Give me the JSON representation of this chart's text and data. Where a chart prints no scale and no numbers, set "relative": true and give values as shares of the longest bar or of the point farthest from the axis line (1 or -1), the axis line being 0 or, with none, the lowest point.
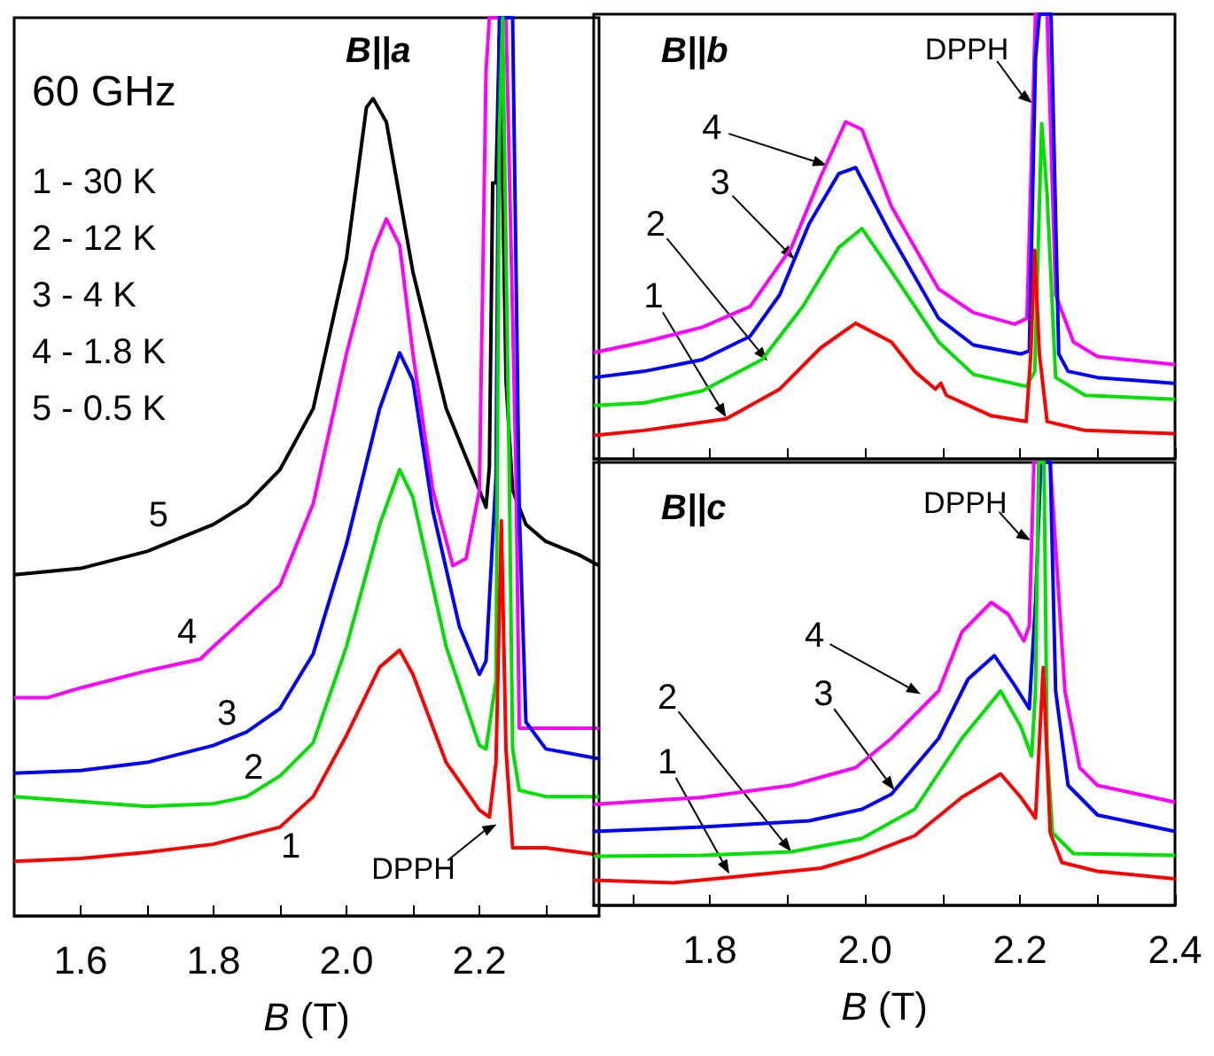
{
  "chart_data": [
    {
      "type": "line",
      "relative": true,
      "title": "B||a",
      "xlabel": "B (T)",
      "tick_labels": "x",
      "xlim": [
        1.5,
        2.38
      ],
      "xticks": [
        {
          "value": 1.6,
          "label": "1.6"
        },
        {
          "value": 1.7,
          "label": null
        },
        {
          "value": 1.8,
          "label": "1.8"
        },
        {
          "value": 1.9,
          "label": null
        },
        {
          "value": 2.0,
          "label": "2.0"
        },
        {
          "value": 2.1,
          "label": null
        },
        {
          "value": 2.2,
          "label": "2.2"
        },
        {
          "value": 2.3,
          "label": null
        }
      ],
      "annotations": [
        "60 GHz",
        "1 - 30 K",
        "2 - 12 K",
        "3 - 4 K",
        "4 - 1.8 K",
        "5 - 0.5 K",
        {
          "text": "5",
          "x": 1.717,
          "y": 0.41
        },
        {
          "text": "4",
          "x": 1.76,
          "y": 0.28
        },
        {
          "text": "3",
          "x": 1.82,
          "y": 0.195
        },
        {
          "text": "2",
          "x": 1.86,
          "y": 0.135
        },
        {
          "text": "1",
          "x": 1.916,
          "y": 0.105
        },
        {
          "text": "DPPH",
          "x": 2.226,
          "y": 0.102
        }
      ],
      "series": [
        {
          "color": "#000000",
          "x": [
            1.5,
            1.6,
            1.7,
            1.8,
            1.85,
            1.9,
            1.95,
            2.0,
            2.03,
            2.04,
            2.06,
            2.1,
            2.15,
            2.2,
            2.21,
            2.215,
            2.22,
            2.225,
            2.23,
            2.235,
            2.24,
            2.25,
            2.27,
            2.3,
            2.35,
            2.38
          ],
          "values": [
            0.38,
            0.387,
            0.406,
            0.436,
            0.459,
            0.497,
            0.565,
            0.732,
            0.9,
            0.91,
            0.884,
            0.717,
            0.565,
            0.474,
            0.455,
            0.5,
            0.816,
            0.816,
            0.98,
            0.816,
            0.596,
            0.474,
            0.436,
            0.417,
            0.402,
            0.39
          ]
        },
        {
          "color": "#ff00ff",
          "x": [
            1.5,
            1.55,
            1.6,
            1.7,
            1.78,
            1.8,
            1.85,
            1.9,
            1.95,
            2.0,
            2.04,
            2.06,
            2.08,
            2.1,
            2.13,
            2.16,
            2.18,
            2.2,
            2.21,
            2.215,
            2.24,
            2.255,
            2.26,
            2.3,
            2.38
          ],
          "values": [
            0.243,
            0.243,
            0.254,
            0.273,
            0.286,
            0.3,
            0.334,
            0.368,
            0.459,
            0.626,
            0.74,
            0.776,
            0.747,
            0.626,
            0.474,
            0.39,
            0.398,
            0.474,
            0.94,
            1,
            1,
            0.5,
            0.209,
            0.209,
            0.209
          ]
        },
        {
          "color": "#0000ff",
          "x": [
            1.5,
            1.6,
            1.7,
            1.8,
            1.85,
            1.9,
            1.95,
            2.0,
            2.05,
            2.08,
            2.1,
            2.13,
            2.17,
            2.2,
            2.21,
            2.225,
            2.23,
            2.25,
            2.26,
            2.27,
            2.3,
            2.38
          ],
          "values": [
            0.159,
            0.162,
            0.171,
            0.19,
            0.205,
            0.231,
            0.292,
            0.414,
            0.565,
            0.627,
            0.596,
            0.451,
            0.322,
            0.269,
            0.284,
            0.489,
            1,
            1,
            0.451,
            0.216,
            0.186,
            0.175
          ]
        },
        {
          "color": "#00e000",
          "x": [
            1.5,
            1.7,
            1.8,
            1.85,
            1.9,
            1.95,
            2.0,
            2.05,
            2.08,
            2.1,
            2.15,
            2.2,
            2.21,
            2.225,
            2.23,
            2.235,
            2.245,
            2.25,
            2.26,
            2.3,
            2.38
          ],
          "values": [
            0.133,
            0.122,
            0.125,
            0.133,
            0.156,
            0.193,
            0.3,
            0.436,
            0.497,
            0.466,
            0.3,
            0.19,
            0.186,
            0.262,
            0.869,
            1,
            0.489,
            0.186,
            0.14,
            0.133,
            0.133
          ]
        },
        {
          "color": "#ff0000",
          "x": [
            1.5,
            1.6,
            1.7,
            1.8,
            1.9,
            1.95,
            2.0,
            2.05,
            2.08,
            2.1,
            2.15,
            2.2,
            2.215,
            2.225,
            2.233,
            2.24,
            2.25,
            2.3,
            2.38
          ],
          "values": [
            0.061,
            0.064,
            0.071,
            0.08,
            0.099,
            0.133,
            0.201,
            0.277,
            0.296,
            0.269,
            0.171,
            0.118,
            0.11,
            0.171,
            0.44,
            0.186,
            0.076,
            0.076,
            0.068
          ]
        }
      ]
    },
    {
      "type": "line",
      "relative": true,
      "title": "B||b",
      "tick_labels": false,
      "xlim": [
        1.65,
        2.4
      ],
      "xticks": [
        {
          "value": 1.7,
          "label": null
        },
        {
          "value": 1.8,
          "label": null
        },
        {
          "value": 1.9,
          "label": null
        },
        {
          "value": 2.0,
          "label": null
        },
        {
          "value": 2.1,
          "label": null
        },
        {
          "value": 2.2,
          "label": null
        },
        {
          "value": 2.3,
          "label": null
        },
        {
          "value": 2.4,
          "label": null
        }
      ],
      "annotations": [
        {
          "text": "4",
          "x": 1.951,
          "y": 0.66
        },
        {
          "text": "3",
          "x": 1.909,
          "y": 0.449
        },
        {
          "text": "2",
          "x": 1.874,
          "y": 0.22
        },
        {
          "text": "1",
          "x": 1.821,
          "y": 0.093
        },
        {
          "text": "DPPH",
          "x": 2.216,
          "y": 0.8
        }
      ],
      "series": [
        {
          "color": "#ff00ff",
          "x": [
            1.65,
            1.715,
            1.79,
            1.852,
            1.905,
            1.943,
            1.975,
            1.996,
            2.034,
            2.095,
            2.14,
            2.193,
            2.209,
            2.22,
            2.235,
            2.246,
            2.269,
            2.3,
            2.4
          ],
          "values": [
            0.239,
            0.263,
            0.296,
            0.343,
            0.475,
            0.635,
            0.758,
            0.741,
            0.568,
            0.382,
            0.329,
            0.303,
            0.316,
            1,
            1,
            0.369,
            0.263,
            0.23,
            0.212
          ]
        },
        {
          "color": "#0000ff",
          "x": [
            1.65,
            1.715,
            1.79,
            1.852,
            1.89,
            1.928,
            1.966,
            1.988,
            2.034,
            2.095,
            2.14,
            2.201,
            2.212,
            2.22,
            2.225,
            2.24,
            2.25,
            2.262,
            2.3,
            2.4
          ],
          "values": [
            0.183,
            0.197,
            0.223,
            0.276,
            0.369,
            0.529,
            0.641,
            0.655,
            0.502,
            0.316,
            0.256,
            0.236,
            0.243,
            0.9,
            1,
            1,
            0.236,
            0.197,
            0.183,
            0.17
          ]
        },
        {
          "color": "#00e000",
          "x": [
            1.65,
            1.715,
            1.79,
            1.867,
            1.92,
            1.966,
            1.996,
            2.034,
            2.095,
            2.14,
            2.208,
            2.219,
            2.228,
            2.235,
            2.246,
            2.284,
            2.4
          ],
          "values": [
            0.12,
            0.126,
            0.153,
            0.223,
            0.343,
            0.475,
            0.518,
            0.422,
            0.263,
            0.19,
            0.163,
            0.196,
            0.754,
            0.594,
            0.183,
            0.143,
            0.134
          ]
        },
        {
          "color": "#ff0000",
          "x": [
            1.65,
            1.715,
            1.821,
            1.89,
            1.943,
            1.988,
            2.034,
            2.064,
            2.091,
            2.098,
            2.105,
            2.163,
            2.208,
            2.214,
            2.219,
            2.225,
            2.235,
            2.284,
            2.4
          ],
          "values": [
            0.053,
            0.064,
            0.09,
            0.157,
            0.25,
            0.305,
            0.263,
            0.197,
            0.157,
            0.17,
            0.143,
            0.097,
            0.084,
            0.237,
            0.469,
            0.237,
            0.084,
            0.064,
            0.057
          ]
        }
      ]
    },
    {
      "type": "line",
      "relative": true,
      "title": "B||c",
      "xlabel": "B (T)",
      "tick_labels": "x",
      "xlim": [
        1.65,
        2.4
      ],
      "xticks": [
        {
          "value": 1.7,
          "label": null
        },
        {
          "value": 1.8,
          "label": "1.8"
        },
        {
          "value": 1.9,
          "label": null
        },
        {
          "value": 2.0,
          "label": "2.0"
        },
        {
          "value": 2.1,
          "label": null
        },
        {
          "value": 2.2,
          "label": "2.2"
        },
        {
          "value": 2.3,
          "label": null
        },
        {
          "value": 2.4,
          "label": "2.4"
        }
      ],
      "annotations": [
        {
          "text": "4",
          "x": 2.072,
          "y": 0.477
        },
        {
          "text": "3",
          "x": 2.038,
          "y": 0.26
        },
        {
          "text": "2",
          "x": 1.905,
          "y": 0.121
        },
        {
          "text": "1",
          "x": 1.825,
          "y": 0.071
        },
        {
          "text": "DPPH",
          "x": 2.214,
          "y": 0.824
        }
      ],
      "series": [
        {
          "color": "#ff00ff",
          "x": [
            1.65,
            1.79,
            1.905,
            1.988,
            2.034,
            2.095,
            2.125,
            2.163,
            2.185,
            2.205,
            2.212,
            2.218,
            2.239,
            2.258,
            2.277,
            2.3,
            2.4
          ],
          "values": [
            0.228,
            0.244,
            0.271,
            0.311,
            0.377,
            0.484,
            0.617,
            0.684,
            0.657,
            0.597,
            0.631,
            1,
            1,
            0.484,
            0.311,
            0.271,
            0.233
          ]
        },
        {
          "color": "#0000ff",
          "x": [
            1.65,
            1.79,
            1.928,
            1.996,
            2.034,
            2.095,
            2.133,
            2.167,
            2.193,
            2.212,
            2.22,
            2.227,
            2.239,
            2.246,
            2.262,
            2.3,
            2.4
          ],
          "values": [
            0.167,
            0.177,
            0.191,
            0.217,
            0.251,
            0.377,
            0.511,
            0.564,
            0.497,
            0.444,
            0.684,
            1,
            1,
            0.484,
            0.271,
            0.204,
            0.167
          ]
        },
        {
          "color": "#00e000",
          "x": [
            1.65,
            1.79,
            1.905,
            1.996,
            2.064,
            2.125,
            2.175,
            2.201,
            2.215,
            2.22,
            2.224,
            2.231,
            2.235,
            2.242,
            2.269,
            2.4
          ],
          "values": [
            0.111,
            0.113,
            0.121,
            0.151,
            0.217,
            0.377,
            0.484,
            0.404,
            0.337,
            0.484,
            1,
            1,
            0.351,
            0.164,
            0.117,
            0.113
          ]
        },
        {
          "color": "#ff0000",
          "x": [
            1.65,
            1.753,
            1.829,
            1.943,
            1.996,
            2.064,
            2.125,
            2.175,
            2.201,
            2.22,
            2.23,
            2.239,
            2.254,
            2.3,
            2.4
          ],
          "values": [
            0.057,
            0.051,
            0.064,
            0.084,
            0.111,
            0.157,
            0.244,
            0.297,
            0.244,
            0.197,
            0.537,
            0.164,
            0.097,
            0.077,
            0.06
          ]
        }
      ]
    }
  ]
}
